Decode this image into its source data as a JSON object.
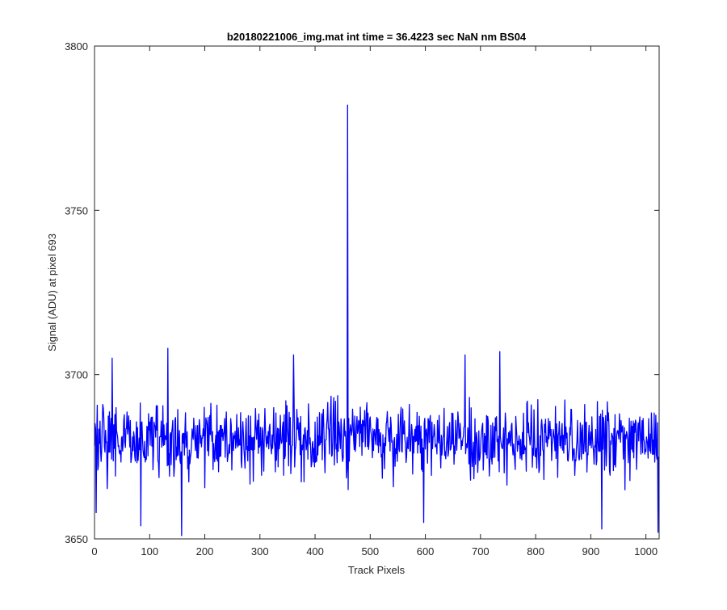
{
  "chart_data": {
    "type": "line",
    "title": "b20180221006_img.mat int time = 36.4223 sec  NaN nm BS04",
    "xlabel": "Track Pixels",
    "ylabel": "Signal (ADU) at pixel 693",
    "xlim": [
      0,
      1024
    ],
    "ylim": [
      3650,
      3800
    ],
    "xticks": [
      0,
      100,
      200,
      300,
      400,
      500,
      600,
      700,
      800,
      900,
      1000
    ],
    "yticks": [
      3650,
      3700,
      3750,
      3800
    ],
    "grid": false,
    "series": [
      {
        "color": "#0000ff",
        "baseline": 3680,
        "noise_amplitude": 9,
        "n_points": 1024,
        "features": [
          {
            "x": 3,
            "y": 3658
          },
          {
            "x": 32,
            "y": 3705
          },
          {
            "x": 84,
            "y": 3654
          },
          {
            "x": 133,
            "y": 3708
          },
          {
            "x": 158,
            "y": 3651
          },
          {
            "x": 361,
            "y": 3706
          },
          {
            "x": 459,
            "y": 3782
          },
          {
            "x": 460,
            "y": 3665
          },
          {
            "x": 597,
            "y": 3655
          },
          {
            "x": 672,
            "y": 3706
          },
          {
            "x": 735,
            "y": 3707
          },
          {
            "x": 920,
            "y": 3653
          },
          {
            "x": 1022,
            "y": 3652
          }
        ]
      }
    ]
  }
}
